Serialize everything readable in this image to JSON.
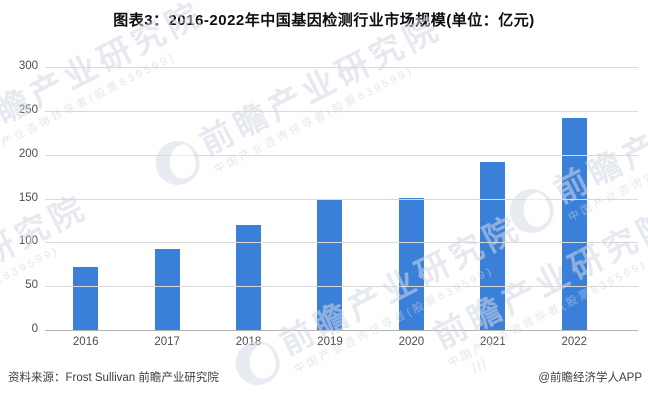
{
  "title": "图表3：2016-2022年中国基因检测行业市场规模(单位：亿元)",
  "chart_data": {
    "type": "bar",
    "title": "图表3：2016-2022年中国基因检测行业市场规模(单位：亿元)",
    "categories": [
      "2016",
      "2017",
      "2018",
      "2019",
      "2020",
      "2021",
      "2022"
    ],
    "values": [
      72,
      92,
      120,
      149,
      151,
      192,
      242
    ],
    "xlabel": "",
    "ylabel": "亿元",
    "ylim": [
      0,
      300
    ],
    "yticks": [
      0,
      50,
      100,
      150,
      200,
      250,
      300
    ],
    "grid": true,
    "legend": "none",
    "bar_color": "#3a80d9"
  },
  "footer": {
    "source": "资料来源：Frost Sullivan 前瞻产业研究院",
    "credit": "@前瞻经济学人APP"
  },
  "watermark": {
    "brand": "前瞻产业研究院",
    "tagline": "中国产业咨询领导者(股票839599)",
    "slashes": "///"
  },
  "colors": {
    "bar": "#3a80d9",
    "gridline": "#d9d9d9",
    "axis_line": "#b3b3b3",
    "tick_text": "#4d4d4d",
    "title_text": "#0d0d0d",
    "watermark": "#d3d8e5"
  }
}
